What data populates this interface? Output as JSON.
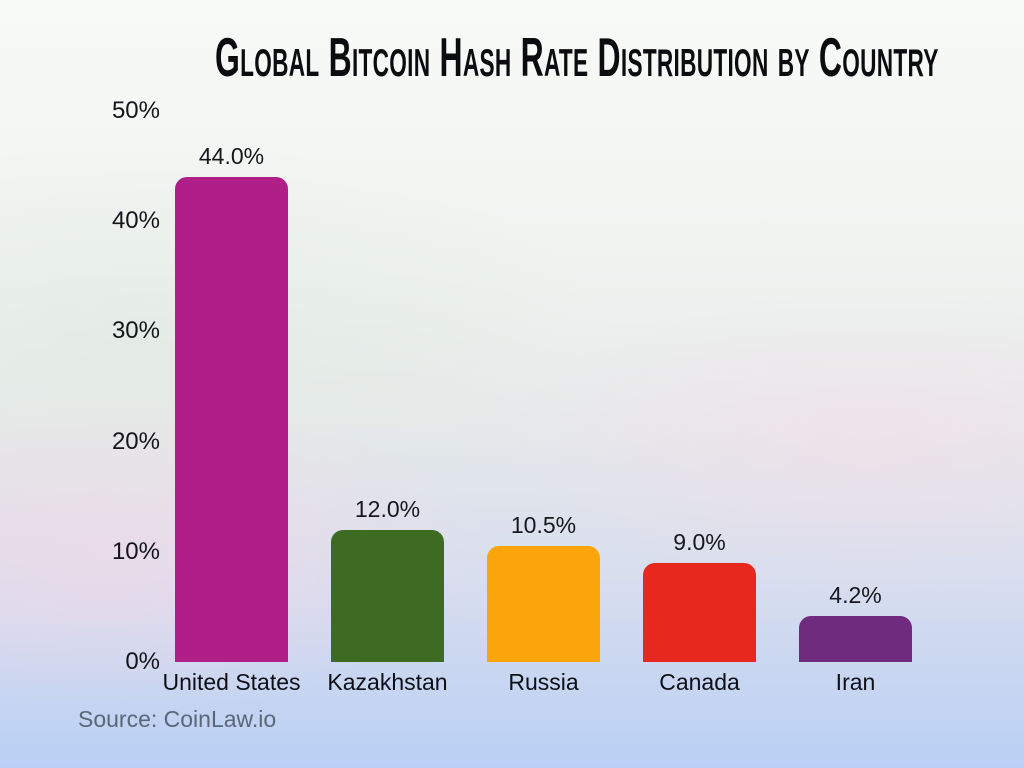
{
  "title": "Global Bitcoin Hash Rate Distribution by Country",
  "source": "Source: CoinLaw.io",
  "colors": {
    "title_text": "#0c0c10",
    "axis_text": "#14141b",
    "value_label_text": "#17171c",
    "source_text": "#5b6677",
    "background_top": "#f8faf7",
    "background_bottom": "#b9d0f4"
  },
  "chart_data": {
    "type": "bar",
    "title": "Global Bitcoin Hash Rate Distribution by Country",
    "categories": [
      "United States",
      "Kazakhstan",
      "Russia",
      "Canada",
      "Iran"
    ],
    "values": [
      44.0,
      12.0,
      10.5,
      9.0,
      4.2
    ],
    "value_labels": [
      "44.0%",
      "12.0%",
      "10.5%",
      "9.0%",
      "4.2%"
    ],
    "bar_colors": [
      "#b01f87",
      "#3e6b22",
      "#faa50c",
      "#e6281e",
      "#6f2b7d"
    ],
    "xlabel": "",
    "ylabel": "",
    "ylim": [
      0,
      50
    ],
    "yticks": [
      0,
      10,
      20,
      30,
      40,
      50
    ],
    "ytick_labels": [
      "0%",
      "10%",
      "20%",
      "30%",
      "40%",
      "50%"
    ],
    "grid": false,
    "legend": false,
    "value_labels_position": "above-bars",
    "source": "Source: CoinLaw.io"
  }
}
